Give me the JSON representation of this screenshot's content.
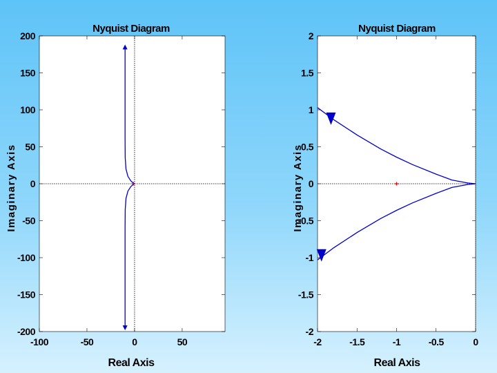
{
  "chart_data": [
    {
      "type": "line",
      "title": "Nyquist Diagram",
      "xlabel": "Real Axis",
      "ylabel": "Imaginary Axis",
      "xlim": [
        -100,
        95
      ],
      "ylim": [
        -200,
        200
      ],
      "xticks": [
        -100,
        -50,
        0,
        50
      ],
      "yticks": [
        200,
        150,
        100,
        50,
        0,
        -50,
        -100,
        -150,
        -200
      ],
      "xtick_labels": [
        "-100",
        "-50",
        "0",
        "50"
      ],
      "ytick_labels": [
        "200",
        "150",
        "100",
        "50",
        "0",
        "-50",
        "-100",
        "-150",
        "-200"
      ],
      "grid": false,
      "zero_lines": true,
      "critical_point": [
        -1,
        0
      ],
      "series": [
        {
          "color": "#0000cc",
          "x": [
            -10,
            -10,
            -10,
            -9.8,
            -9,
            -7,
            -4,
            -1.5,
            0
          ],
          "y": [
            185,
            100,
            60,
            35,
            20,
            10,
            4,
            1,
            0
          ],
          "arrow_at": [
            -10,
            185
          ],
          "arrow_dir": "up"
        },
        {
          "color": "#0000cc",
          "x": [
            0,
            -1.5,
            -4,
            -7,
            -9,
            -9.8,
            -10,
            -10,
            -10
          ],
          "y": [
            0,
            -1,
            -4,
            -10,
            -20,
            -35,
            -60,
            -100,
            -195
          ],
          "arrow_at": [
            -10,
            -195
          ],
          "arrow_dir": "down"
        }
      ]
    },
    {
      "type": "line",
      "title": "Nyquist Diagram",
      "xlabel": "Real Axis",
      "ylabel": "Imaginary Axis",
      "xlim": [
        -2,
        0
      ],
      "ylim": [
        -2,
        2
      ],
      "xticks": [
        -2,
        -1.5,
        -1,
        -0.5,
        0
      ],
      "yticks": [
        2,
        1.5,
        1,
        0.5,
        0,
        -0.5,
        -1,
        -1.5,
        -2
      ],
      "xtick_labels": [
        "-2",
        "-1.5",
        "-1",
        "-0.5",
        "0"
      ],
      "ytick_labels": [
        "2",
        "1.5",
        "1",
        "0.5",
        "0",
        "-0.5",
        "-1",
        "-1.5",
        "-2"
      ],
      "grid": false,
      "zero_lines": true,
      "critical_point": [
        -1,
        0
      ],
      "series": [
        {
          "color": "#0000cc",
          "x": [
            -2,
            -1.8,
            -1.5,
            -1.2,
            -1.0,
            -0.8,
            -0.5,
            -0.3,
            -0.1,
            0
          ],
          "y": [
            1.03,
            0.87,
            0.66,
            0.47,
            0.36,
            0.26,
            0.13,
            0.05,
            0.01,
            0
          ],
          "arrow_at": [
            -1.83,
            0.88
          ],
          "arrow_dir": "down"
        },
        {
          "color": "#0000cc",
          "x": [
            0,
            -0.1,
            -0.3,
            -0.5,
            -0.8,
            -1.0,
            -1.2,
            -1.5,
            -1.8,
            -2
          ],
          "y": [
            0,
            -0.01,
            -0.05,
            -0.13,
            -0.26,
            -0.36,
            -0.47,
            -0.66,
            -0.87,
            -1.03
          ],
          "arrow_at": [
            -1.95,
            -0.97
          ],
          "arrow_dir": "down"
        }
      ]
    }
  ]
}
